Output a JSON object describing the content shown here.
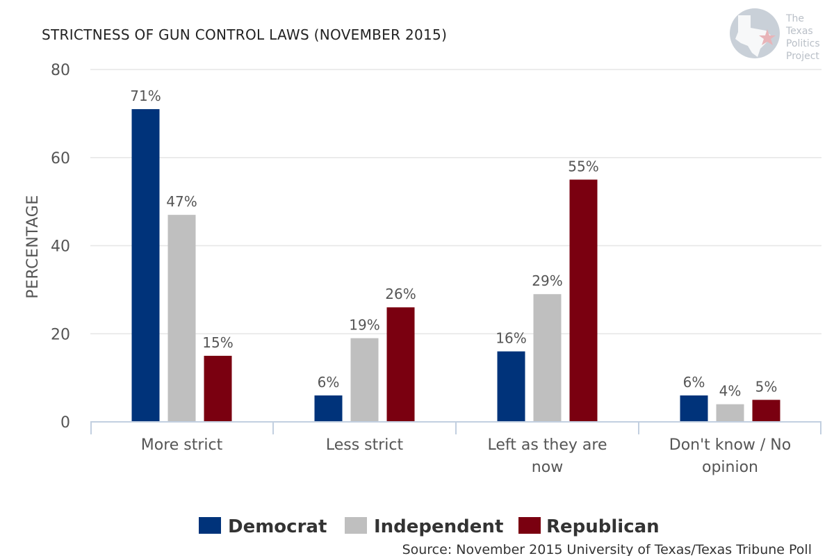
{
  "chart_data": {
    "type": "bar",
    "title": "STRICTNESS OF GUN CONTROL LAWS (NOVEMBER 2015)",
    "xlabel": "",
    "ylabel": "PERCENTAGE",
    "ylim": [
      0,
      80
    ],
    "yticks": [
      0,
      20,
      40,
      60,
      80
    ],
    "grid": true,
    "legend_position": "bottom",
    "categories": [
      [
        "More strict"
      ],
      [
        "Less strict"
      ],
      [
        "Left as they are",
        "now"
      ],
      [
        "Don't know / No",
        "opinion"
      ]
    ],
    "series": [
      {
        "name": "Democrat",
        "color": "#00337a",
        "values": [
          71,
          6,
          16,
          6
        ],
        "labels": [
          "71%",
          "6%",
          "16%",
          "6%"
        ]
      },
      {
        "name": "Independent",
        "color": "#bfbfbf",
        "values": [
          47,
          19,
          29,
          4
        ],
        "labels": [
          "47%",
          "19%",
          "29%",
          "4%"
        ]
      },
      {
        "name": "Republican",
        "color": "#7a0010",
        "values": [
          15,
          26,
          55,
          5
        ],
        "labels": [
          "15%",
          "26%",
          "55%",
          "5%"
        ]
      }
    ],
    "source": "Source: November 2015 University of Texas/Texas Tribune Poll"
  },
  "logo": {
    "lines": [
      "The",
      "Texas",
      "Politics",
      "Project"
    ],
    "icon": "texas-star-logo-icon"
  }
}
